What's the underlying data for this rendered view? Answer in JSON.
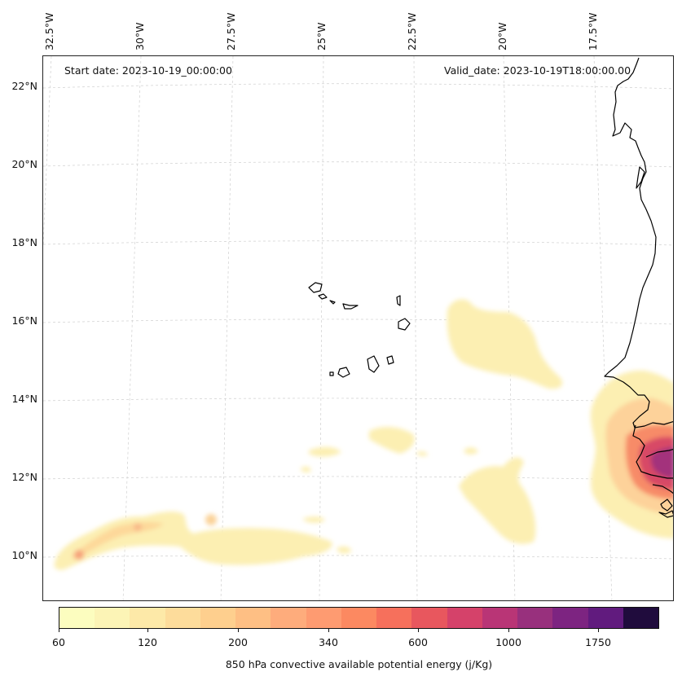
{
  "map": {
    "start_date": "Start date: 2023-10-19_00:00:00",
    "valid_date": "Valid_date: 2023-10-19T18:00:00.00",
    "lat_labels": [
      "22°N",
      "20°N",
      "18°N",
      "16°N",
      "14°N",
      "12°N",
      "10°N"
    ],
    "lon_labels": [
      "32.5°W",
      "30°W",
      "27.5°W",
      "25°W",
      "22.5°W",
      "20°W",
      "17.5°W"
    ]
  },
  "colorbar": {
    "label": "850 hPa convective available potential energy (j/Kg)",
    "tick_labels": [
      "60",
      "120",
      "200",
      "340",
      "600",
      "1000",
      "1750"
    ],
    "colors": [
      "#fcfdbf",
      "#fcf4b6",
      "#fde9a8",
      "#fddc9b",
      "#fecf8e",
      "#febf84",
      "#feac7c",
      "#fe9b71",
      "#fc8961",
      "#f6705c",
      "#e8575e",
      "#d5426a",
      "#b93576",
      "#98307d",
      "#7d2481",
      "#611b7e",
      "#200c3d"
    ]
  }
}
